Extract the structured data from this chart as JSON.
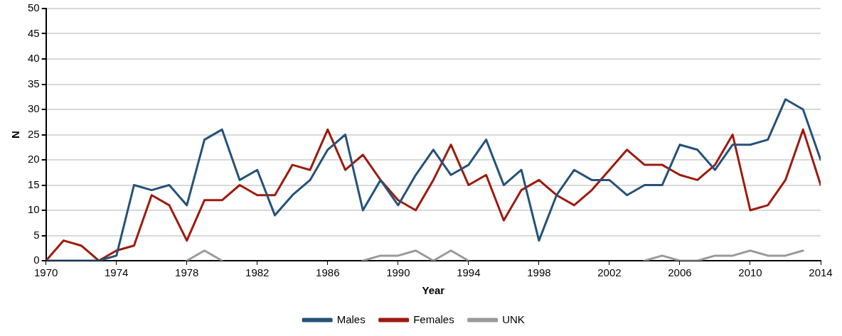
{
  "chart_data": {
    "type": "line",
    "xlabel": "Year",
    "ylabel": "N",
    "x": [
      1970,
      1971,
      1972,
      1973,
      1974,
      1975,
      1976,
      1977,
      1978,
      1979,
      1980,
      1981,
      1982,
      1983,
      1984,
      1985,
      1986,
      1987,
      1988,
      1989,
      1990,
      1991,
      1992,
      1993,
      1994,
      1995,
      1996,
      1997,
      1998,
      1999,
      2000,
      2001,
      2002,
      2003,
      2004,
      2005,
      2006,
      2007,
      2008,
      2009,
      2010,
      2011,
      2012,
      2013,
      2014
    ],
    "series": [
      {
        "name": "Males",
        "color": "#24527a",
        "values": [
          0,
          0,
          0,
          0,
          1,
          15,
          14,
          15,
          11,
          24,
          26,
          16,
          18,
          9,
          13,
          16,
          22,
          25,
          10,
          16,
          11,
          17,
          22,
          17,
          19,
          24,
          15,
          18,
          4,
          13,
          18,
          16,
          16,
          13,
          15,
          15,
          23,
          22,
          18,
          23,
          23,
          24,
          32,
          30,
          20
        ]
      },
      {
        "name": "Females",
        "color": "#9c1b0e",
        "values": [
          0,
          4,
          3,
          0,
          2,
          3,
          13,
          11,
          4,
          12,
          12,
          15,
          13,
          13,
          19,
          18,
          26,
          18,
          21,
          16,
          12,
          10,
          16,
          23,
          15,
          17,
          8,
          14,
          16,
          13,
          11,
          14,
          18,
          22,
          19,
          19,
          17,
          16,
          19,
          25,
          10,
          11,
          16,
          26,
          15
        ]
      },
      {
        "name": "UNK",
        "color": "#9a9a9a",
        "values": [
          null,
          null,
          null,
          null,
          null,
          null,
          null,
          null,
          0,
          2,
          0,
          null,
          null,
          null,
          null,
          null,
          null,
          null,
          0,
          1,
          1,
          2,
          0,
          2,
          0,
          null,
          null,
          null,
          null,
          null,
          null,
          null,
          null,
          null,
          0,
          1,
          0,
          0,
          1,
          1,
          2,
          1,
          1,
          2,
          null
        ]
      }
    ],
    "xlim": [
      1970,
      2014
    ],
    "xticks": [
      1970,
      1974,
      1978,
      1982,
      1986,
      1990,
      1994,
      1998,
      2002,
      2006,
      2010,
      2014
    ],
    "ylim": [
      0,
      50
    ],
    "yticks": [
      0,
      5,
      10,
      15,
      20,
      25,
      30,
      35,
      40,
      45,
      50
    ],
    "grid": "y",
    "legend": "bottom",
    "marker": "none",
    "line_style": "solid"
  }
}
